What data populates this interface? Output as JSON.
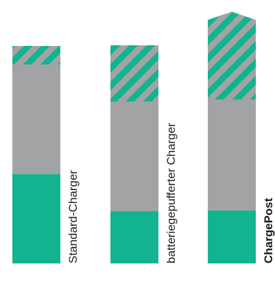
{
  "chart_data": {
    "type": "bar",
    "stacked": true,
    "categories": [
      "Standard-Charger",
      "batteriegepufferter Charger",
      "ChargePost"
    ],
    "category_emphasis": [
      false,
      false,
      true
    ],
    "segments": [
      {
        "pattern": "solid",
        "color": "#12b48f",
        "values": [
          130,
          76,
          77
        ]
      },
      {
        "pattern": "solid",
        "color": "#a1a3a5",
        "values": [
          160,
          160,
          162
        ]
      },
      {
        "pattern": "hatched",
        "color": "#12b48f",
        "hatch_color": "#a1a3a5",
        "values": [
          27,
          82,
          128
        ]
      }
    ],
    "ylim": [
      0,
      400
    ],
    "grid": false,
    "legend": "none"
  }
}
